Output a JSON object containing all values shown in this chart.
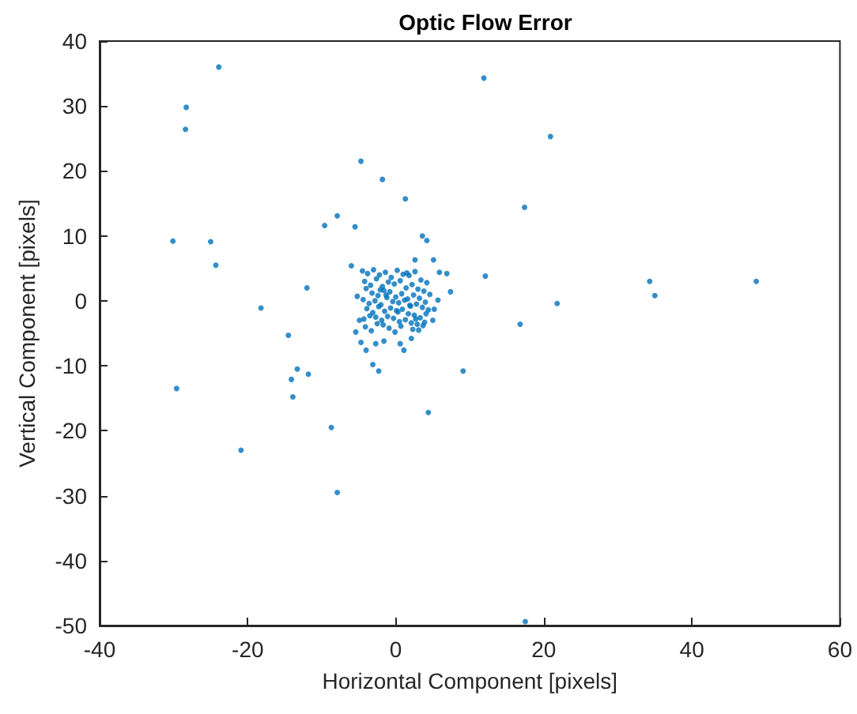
{
  "chart_data": {
    "type": "scatter",
    "title": "Optic Flow Error",
    "xlabel": "Horizontal Component [pixels]",
    "ylabel": "Vertical Component [pixels]",
    "xlim": [
      -40,
      60
    ],
    "ylim": [
      -50,
      40
    ],
    "xticks": [
      -40,
      -20,
      0,
      20,
      40,
      60
    ],
    "yticks": [
      -50,
      -40,
      -30,
      -20,
      -10,
      0,
      10,
      20,
      30,
      40
    ],
    "grid": false,
    "marker": "circle",
    "series": [
      {
        "color": "#0072bd",
        "x": [
          -23.9,
          -28.3,
          -28.4,
          -4.7,
          -1.8,
          1.3,
          -7.9,
          -9.6,
          -5.5,
          -30.1,
          -25.0,
          -24.3,
          3.6,
          4.2,
          -12.0,
          -18.2,
          -14.5,
          -13.3,
          -14.1,
          -11.8,
          -13.9,
          -29.6,
          -8.7,
          -20.9,
          -7.9,
          9.1,
          4.4,
          -2.3,
          -3.1,
          -4.0,
          -4.7,
          -5.4,
          -1.6,
          -2.7,
          1.1,
          0.6,
          2.1,
          7.4,
          5.1,
          6.9,
          5.9,
          -6.0,
          5.7,
          5.2,
          5.0,
          -4.9,
          -5.2,
          2.6,
          11.9,
          20.9,
          17.4,
          12.1,
          34.3,
          35.0,
          48.7,
          21.8,
          16.8,
          17.5,
          -4.5,
          -3.8,
          -3.0,
          -2.2,
          -1.4,
          -0.6,
          0.2,
          1.0,
          1.8,
          2.6,
          3.4,
          4.2,
          -4.2,
          -3.4,
          -2.6,
          -1.8,
          -1.0,
          -0.2,
          0.6,
          1.4,
          2.2,
          3.0,
          3.8,
          4.6,
          -4.0,
          -3.2,
          -2.4,
          -1.6,
          -0.8,
          0.0,
          0.8,
          1.6,
          2.4,
          3.2,
          4.0,
          -4.4,
          -3.6,
          -2.8,
          -2.0,
          -1.2,
          -0.4,
          0.4,
          1.2,
          2.0,
          2.8,
          3.6,
          4.4,
          -3.9,
          -3.1,
          -2.3,
          -1.5,
          -0.7,
          0.1,
          0.9,
          1.7,
          2.5,
          3.3,
          4.1,
          -4.3,
          -3.5,
          -2.7,
          -1.9,
          -1.1,
          -0.3,
          0.5,
          1.3,
          2.1,
          2.9,
          3.7,
          -4.1,
          -2.5,
          -0.9,
          0.7,
          2.3,
          3.9,
          -3.3,
          -1.7,
          -0.1,
          1.5,
          3.1,
          -2.1,
          0.3,
          1.9,
          -1.3,
          2.7
        ],
        "values": [
          36.0,
          29.8,
          26.4,
          21.5,
          18.7,
          15.7,
          13.1,
          11.6,
          11.4,
          9.2,
          9.1,
          5.5,
          10.0,
          9.3,
          2.0,
          -1.1,
          -5.3,
          -10.5,
          -12.1,
          -11.3,
          -14.8,
          -13.5,
          -19.5,
          -23.0,
          -29.5,
          -10.8,
          -17.2,
          -10.8,
          -9.8,
          -7.6,
          -6.4,
          -4.8,
          -6.2,
          -6.6,
          -7.6,
          -6.6,
          -5.8,
          1.4,
          6.3,
          4.2,
          4.4,
          5.4,
          0.1,
          -1.3,
          -3.0,
          -3.0,
          0.7,
          6.3,
          34.3,
          25.3,
          14.4,
          3.8,
          3.0,
          0.8,
          3.0,
          -0.4,
          -3.6,
          -49.4,
          4.6,
          4.2,
          4.8,
          4.0,
          4.4,
          3.6,
          4.7,
          4.1,
          3.9,
          4.5,
          3.2,
          2.8,
          3.0,
          2.4,
          3.4,
          2.2,
          2.9,
          2.6,
          3.1,
          2.0,
          2.5,
          1.8,
          1.5,
          1.0,
          1.9,
          1.2,
          0.8,
          1.6,
          1.4,
          0.6,
          1.1,
          0.3,
          0.9,
          0.4,
          -0.2,
          0.2,
          -0.4,
          0.0,
          -0.6,
          0.5,
          -0.1,
          -0.3,
          0.1,
          -0.8,
          -0.5,
          -1.0,
          -1.4,
          -1.2,
          -1.8,
          -0.9,
          -1.6,
          -1.1,
          -1.5,
          -1.3,
          -2.0,
          -2.2,
          -2.6,
          -2.0,
          -2.8,
          -2.3,
          -2.5,
          -3.0,
          -2.4,
          -2.7,
          -3.2,
          -2.9,
          -3.4,
          -3.6,
          -3.8,
          -4.0,
          -3.5,
          -4.2,
          -3.9,
          -4.4,
          -3.3,
          -4.6,
          -3.7,
          -4.8,
          4.3,
          -4.5,
          1.7,
          -1.7,
          -0.7,
          0.9,
          -2.8
        ]
      }
    ]
  }
}
